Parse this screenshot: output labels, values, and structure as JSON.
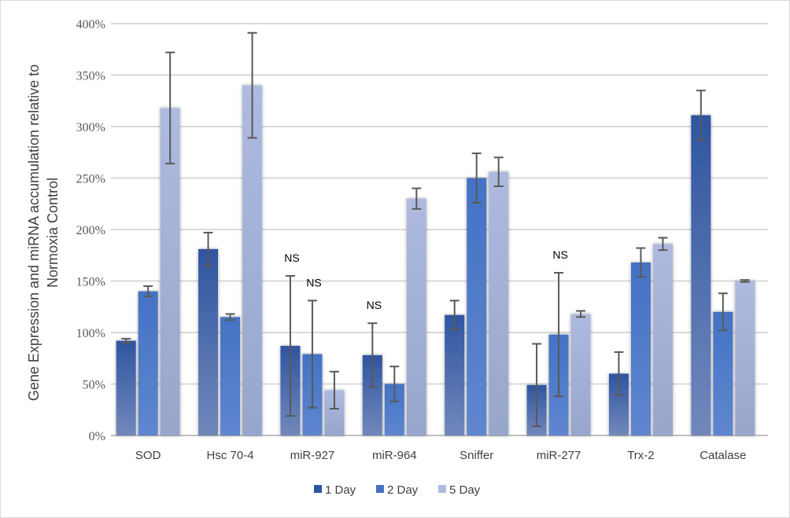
{
  "chart_data": {
    "type": "bar",
    "title": "",
    "xlabel": "",
    "ylabel": [
      "Gene Expression and miRNA accumulation relative to",
      "Normoxia Control"
    ],
    "ylim": [
      0,
      400
    ],
    "yticks": [
      "0%",
      "50%",
      "100%",
      "150%",
      "200%",
      "250%",
      "300%",
      "350%",
      "400%"
    ],
    "grid": true,
    "legend_position": "bottom",
    "categories": [
      "SOD",
      "Hsc 70-4",
      "miR-927",
      "miR-964",
      "Sniffer",
      "miR-277",
      "Trx-2",
      "Catalase"
    ],
    "series": [
      {
        "name": "1 Day",
        "color": "#2f55a0",
        "values": [
          92,
          181,
          87,
          78,
          117,
          49,
          60,
          311
        ],
        "errors": [
          2,
          16,
          68,
          31,
          14,
          40,
          21,
          24
        ],
        "annotations": [
          "",
          "",
          "NS",
          "NS",
          "",
          "",
          "",
          ""
        ]
      },
      {
        "name": "2 Day",
        "color": "#4472c4",
        "values": [
          140,
          115,
          79,
          50,
          250,
          98,
          168,
          120
        ],
        "errors": [
          5,
          3,
          52,
          17,
          24,
          60,
          14,
          18
        ],
        "annotations": [
          "",
          "",
          "NS",
          "",
          "",
          "NS",
          "",
          ""
        ]
      },
      {
        "name": "5 Day",
        "color": "#aebadf",
        "values": [
          318,
          340,
          44,
          230,
          256,
          118,
          186,
          150
        ],
        "errors": [
          54,
          51,
          18,
          10,
          14,
          3,
          6,
          1
        ],
        "annotations": [
          "",
          "",
          "",
          "",
          "",
          "",
          "",
          ""
        ]
      }
    ]
  }
}
